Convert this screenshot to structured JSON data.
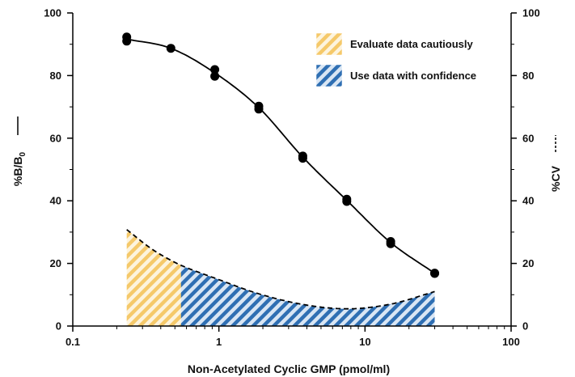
{
  "chart_data": {
    "type": "line",
    "xlabel": "Non-Acetylated Cyclic GMP (pmol/ml)",
    "ylabel": "%B/B0",
    "ylabel_main": "%B/B",
    "ylabel_sub": "0",
    "ylabel2": "%CV",
    "x_scale": "log",
    "xlim": [
      0.1,
      100
    ],
    "ylim": [
      0,
      100
    ],
    "y2lim": [
      0,
      100
    ],
    "x_tick_values": [
      0.1,
      1,
      10,
      100
    ],
    "x_tick_labels": [
      "0.1",
      "1",
      "10",
      "100"
    ],
    "y_tick_values": [
      0,
      20,
      40,
      60,
      80,
      100
    ],
    "y_tick_labels": [
      "0",
      "20",
      "40",
      "60",
      "80",
      "100"
    ],
    "y2_tick_labels": [
      "0",
      "20",
      "40",
      "60",
      "80",
      "100"
    ],
    "grid": false,
    "legend_position": "top-right",
    "legend": [
      {
        "label": "Evaluate data cautiously",
        "color": "#f5c96a",
        "hatch": "diagonal"
      },
      {
        "label": "Use data with confidence",
        "color": "#2f6fb3",
        "hatch": "diagonal"
      }
    ],
    "series": [
      {
        "style": "solid-with-markers",
        "color": "#000000",
        "x": [
          0.234,
          0.234,
          0.469,
          0.938,
          0.938,
          1.875,
          1.875,
          3.75,
          3.75,
          7.5,
          7.5,
          15,
          15,
          30,
          30
        ],
        "y": [
          92.3,
          91.0,
          88.7,
          81.9,
          79.8,
          70.2,
          69.3,
          54.3,
          53.6,
          40.5,
          39.8,
          27.0,
          26.3,
          16.9,
          16.8
        ]
      },
      {
        "style": "dashed",
        "color": "#000000",
        "x": [
          0.234,
          0.35,
          0.469,
          0.55,
          0.938,
          1.875,
          3.75,
          7.5,
          15,
          30
        ],
        "y": [
          30.8,
          24.5,
          21.0,
          19.4,
          15.3,
          10.3,
          6.9,
          5.5,
          7.0,
          11.0
        ]
      }
    ],
    "shaded_regions": [
      {
        "label": "Evaluate data cautiously",
        "x_range": [
          0.234,
          0.55
        ]
      },
      {
        "label": "Use data with confidence",
        "x_range": [
          0.55,
          30
        ]
      }
    ]
  }
}
